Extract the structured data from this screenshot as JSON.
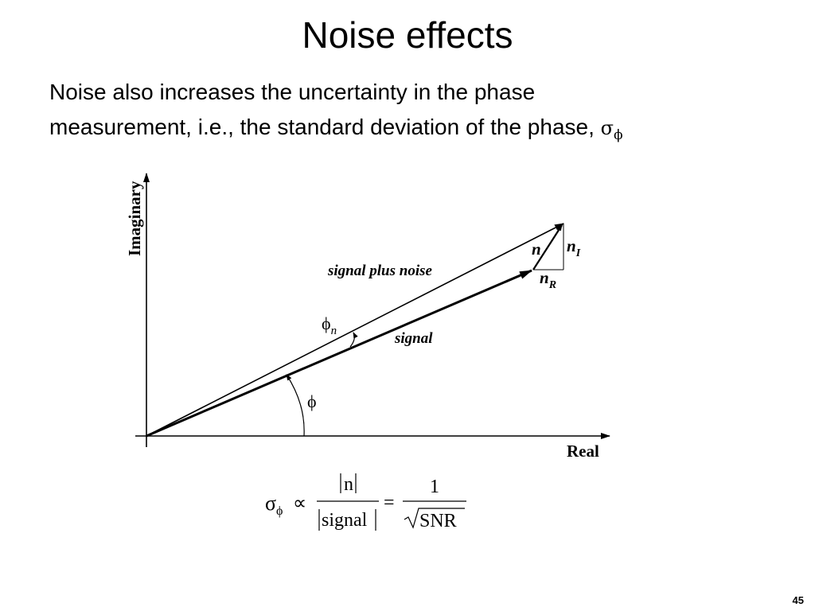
{
  "slide": {
    "title": "Noise effects",
    "body_line1": "Noise also increases the uncertainty in the phase",
    "body_line2": "measurement, i.e., the standard deviation of the phase,",
    "sigma": "σ",
    "phi": "ϕ",
    "page_number": "45"
  },
  "diagram": {
    "y_axis_label": "Imaginary",
    "x_axis_label": "Real",
    "signal_plus_noise_label": "signal plus noise",
    "signal_label": "signal",
    "phi_label": "ϕ",
    "phi_n_base": "ϕ",
    "phi_n_sub": "n",
    "n_label": "n",
    "n_I_base": "n",
    "n_I_sub": "I",
    "n_R_base": "n",
    "n_R_sub": "R"
  },
  "formula": {
    "sigma": "σ",
    "phi": "ϕ",
    "proportional": "∝",
    "numerator": "n",
    "denominator": "signal",
    "equals": "=",
    "one": "1",
    "snr": "SNR"
  }
}
